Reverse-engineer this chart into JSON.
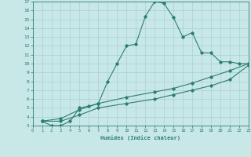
{
  "xlabel": "Humidex (Indice chaleur)",
  "bg_color": "#c8e8e8",
  "line_color": "#2d7d6e",
  "grid_color": "#a8d0d0",
  "xlim": [
    0,
    23
  ],
  "ylim": [
    3,
    17
  ],
  "xticks": [
    0,
    1,
    2,
    3,
    4,
    5,
    6,
    7,
    8,
    9,
    10,
    11,
    12,
    13,
    14,
    15,
    16,
    17,
    18,
    19,
    20,
    21,
    22,
    23
  ],
  "yticks": [
    3,
    4,
    5,
    6,
    7,
    8,
    9,
    10,
    11,
    12,
    13,
    14,
    15,
    16,
    17
  ],
  "series": [
    {
      "x": [
        1,
        2,
        3,
        4,
        5,
        6,
        7,
        8,
        9,
        10,
        11,
        12,
        13,
        14,
        15,
        16,
        17,
        18,
        19,
        20,
        21,
        22,
        23
      ],
      "y": [
        3.5,
        3.0,
        3.0,
        3.5,
        5.0,
        5.2,
        5.5,
        8.0,
        10.0,
        12.0,
        12.2,
        15.3,
        17.0,
        16.8,
        15.2,
        13.0,
        13.5,
        11.2,
        11.2,
        10.2,
        10.2,
        10.0,
        10.0
      ]
    },
    {
      "x": [
        1,
        3,
        5,
        7,
        10,
        13,
        15,
        17,
        19,
        21,
        23
      ],
      "y": [
        3.5,
        3.8,
        4.8,
        5.5,
        6.2,
        6.8,
        7.2,
        7.8,
        8.5,
        9.2,
        10.0
      ]
    },
    {
      "x": [
        1,
        3,
        5,
        7,
        10,
        13,
        15,
        17,
        19,
        21,
        23
      ],
      "y": [
        3.5,
        3.5,
        4.2,
        5.0,
        5.5,
        6.0,
        6.5,
        7.0,
        7.5,
        8.2,
        9.8
      ]
    }
  ]
}
